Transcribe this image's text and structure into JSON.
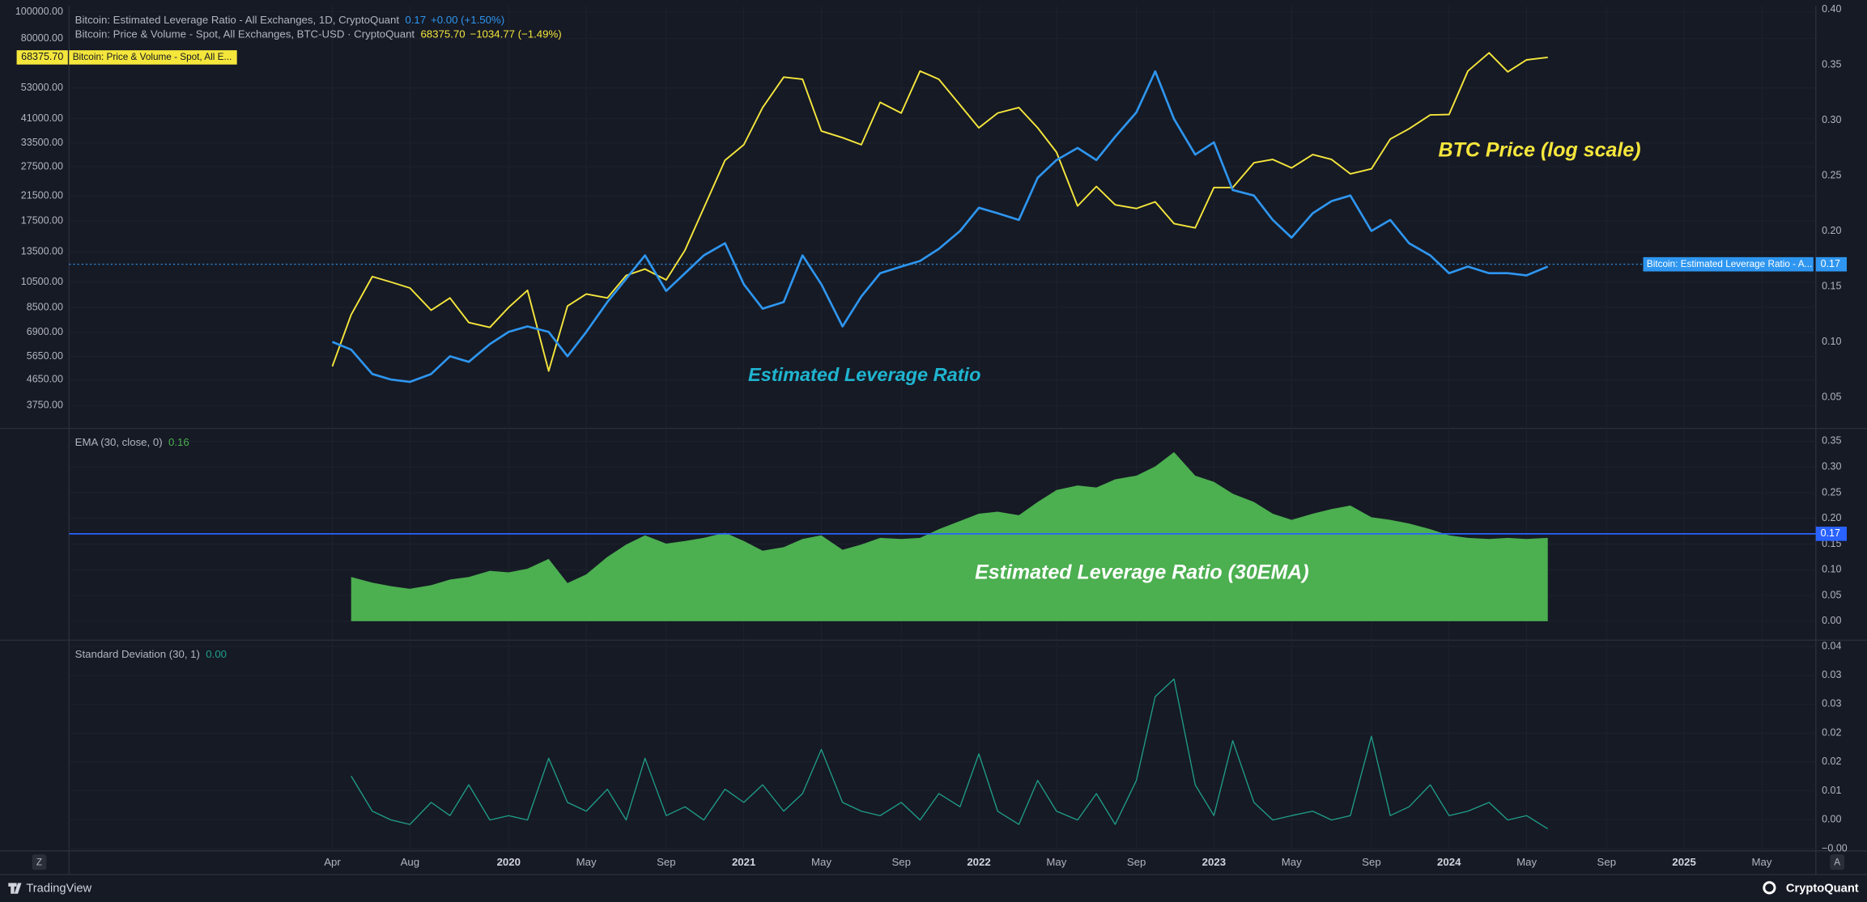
{
  "chart_data": {
    "type": "multi-pane",
    "x": [
      2019.25,
      2019.33,
      2019.42,
      2019.5,
      2019.58,
      2019.67,
      2019.75,
      2019.83,
      2019.92,
      2020,
      2020.08,
      2020.17,
      2020.25,
      2020.33,
      2020.42,
      2020.5,
      2020.58,
      2020.67,
      2020.75,
      2020.83,
      2020.92,
      2021,
      2021.08,
      2021.17,
      2021.25,
      2021.33,
      2021.42,
      2021.5,
      2021.58,
      2021.67,
      2021.75,
      2021.83,
      2021.92,
      2022,
      2022.08,
      2022.17,
      2022.25,
      2022.33,
      2022.42,
      2022.5,
      2022.58,
      2022.67,
      2022.75,
      2022.83,
      2022.92,
      2023,
      2023.08,
      2023.17,
      2023.25,
      2023.33,
      2023.42,
      2023.5,
      2023.58,
      2023.67,
      2023.75,
      2023.83,
      2023.92,
      2024,
      2024.08,
      2024.17,
      2024.25,
      2024.33,
      2024.42
    ],
    "xlim": [
      2018.13,
      2025.56
    ],
    "xticks": [
      {
        "value": 2019.25,
        "label": "Apr"
      },
      {
        "value": 2019.58,
        "label": "Aug"
      },
      2020,
      {
        "value": 2020.33,
        "label": "May"
      },
      {
        "value": 2020.67,
        "label": "Sep"
      },
      2021,
      {
        "value": 2021.33,
        "label": "May"
      },
      {
        "value": 2021.67,
        "label": "Sep"
      },
      2022,
      {
        "value": 2022.33,
        "label": "May"
      },
      {
        "value": 2022.67,
        "label": "Sep"
      },
      2023,
      {
        "value": 2023.33,
        "label": "May"
      },
      {
        "value": 2023.67,
        "label": "Sep"
      },
      2024,
      {
        "value": 2024.33,
        "label": "May"
      },
      {
        "value": 2024.67,
        "label": "Sep"
      },
      2025,
      {
        "value": 2025.33,
        "label": "May"
      }
    ],
    "grid": true,
    "panes": [
      {
        "type": "line",
        "log_y": true,
        "y_axis_side": "left",
        "grid": true,
        "ylim": [
          3100,
          105000
        ],
        "yticks": [
          {
            "value": 100000,
            "label": "100000.00"
          },
          {
            "value": 80000,
            "label": "80000.00"
          },
          {
            "value": 53000,
            "label": "53000.00"
          },
          {
            "value": 41000,
            "label": "41000.00"
          },
          {
            "value": 33500,
            "label": "33500.00"
          },
          {
            "value": 27500,
            "label": "27500.00"
          },
          {
            "value": 21500,
            "label": "21500.00"
          },
          {
            "value": 17500,
            "label": "17500.00"
          },
          {
            "value": 13500,
            "label": "13500.00"
          },
          {
            "value": 10500,
            "label": "10500.00"
          },
          {
            "value": 8500,
            "label": "8500.00"
          },
          {
            "value": 6900,
            "label": "6900.00"
          },
          {
            "value": 5650,
            "label": "5650.00"
          },
          {
            "value": 4650,
            "label": "4650.00"
          },
          {
            "value": 3750,
            "label": "3750.00"
          }
        ],
        "y2lim": [
          0.022,
          0.403
        ],
        "y2ticks": [
          {
            "value": 0.4,
            "label": "0.40"
          },
          0.35,
          {
            "value": 0.3,
            "label": "0.30"
          },
          0.25,
          {
            "value": 0.2,
            "label": "0.20"
          },
          0.15,
          {
            "value": 0.1,
            "label": "0.10"
          },
          0.05
        ],
        "series": [
          {
            "name": "Bitcoin: Estimated Leverage Ratio - All Exchanges, 1D, CryptoQuant",
            "axis": "y2",
            "color": "#2e96f0",
            "legend_value": "0.17",
            "legend_change": "+0.00 (+1.50%)",
            "last_value": 0.17,
            "last_value_label": "0.17",
            "tag": "Bitcoin: Estimated Leverage Ratio - A...",
            "values": [
              0.1,
              0.093,
              0.071,
              0.066,
              0.064,
              0.071,
              0.087,
              0.082,
              0.098,
              0.109,
              0.114,
              0.109,
              0.087,
              0.109,
              0.136,
              0.157,
              0.178,
              0.146,
              0.162,
              0.178,
              0.189,
              0.152,
              0.13,
              0.136,
              0.178,
              0.152,
              0.114,
              0.141,
              0.162,
              0.168,
              0.173,
              0.184,
              0.2,
              0.221,
              0.216,
              0.21,
              0.248,
              0.264,
              0.275,
              0.264,
              0.285,
              0.307,
              0.344,
              0.301,
              0.269,
              0.28,
              0.237,
              0.232,
              0.21,
              0.194,
              0.216,
              0.227,
              0.232,
              0.2,
              0.21,
              0.189,
              0.178,
              0.162,
              0.168,
              0.162,
              0.162,
              0.16,
              0.168
            ]
          },
          {
            "name": "Bitcoin: Price & Volume - Spot, All Exchanges, BTC-USD · CryptoQuant",
            "color": "#f5e63c",
            "legend_value": "68375.70",
            "legend_change": "−1034.77 (−1.49%)",
            "last_value": 68375.7,
            "last_value_label": "68375.70",
            "tag": "Bitcoin: Price & Volume - Spot, All E...",
            "values": [
              5200,
              8000,
              11000,
              10500,
              10000,
              8300,
              9200,
              7500,
              7200,
              8500,
              9800,
              5000,
              8600,
              9500,
              9200,
              11100,
              11700,
              10700,
              13700,
              19500,
              29000,
              33000,
              45000,
              58000,
              57000,
              37000,
              35000,
              33000,
              47000,
              43000,
              61000,
              57000,
              46000,
              38000,
              43000,
              45000,
              38000,
              31000,
              19800,
              23300,
              20000,
              19400,
              20500,
              17100,
              16500,
              23100,
              23100,
              28400,
              29200,
              27200,
              30400,
              29200,
              25900,
              27000,
              34600,
              37700,
              42300,
              42500,
              61000,
              71000,
              60600,
              67000,
              68375.7
            ]
          }
        ],
        "annotations": [
          {
            "text": "BTC Price (log scale)",
            "color": "#f5e63c"
          },
          {
            "text": "Estimated Leverage Ratio",
            "color": "#1fb5d0"
          }
        ]
      },
      {
        "type": "area",
        "y_axis_side": "right",
        "grid": true,
        "ylim": [
          -0.037,
          0.375
        ],
        "yticks": [
          0.35,
          {
            "value": 0.3,
            "label": "0.30"
          },
          0.25,
          {
            "value": 0.2,
            "label": "0.20"
          },
          0.15,
          {
            "value": 0.1,
            "label": "0.10"
          },
          0.05,
          {
            "value": 0,
            "label": "0.00"
          }
        ],
        "series": [
          {
            "name": "EMA (30, close, 0)",
            "color": "#4caf50",
            "legend_value": "0.16",
            "values": [
              null,
              0.086,
              0.075,
              0.068,
              0.063,
              0.07,
              0.081,
              0.086,
              0.098,
              0.095,
              0.102,
              0.121,
              0.074,
              0.091,
              0.125,
              0.149,
              0.167,
              0.151,
              0.156,
              0.162,
              0.172,
              0.156,
              0.137,
              0.144,
              0.16,
              0.167,
              0.139,
              0.149,
              0.162,
              0.16,
              0.162,
              0.179,
              0.195,
              0.209,
              0.213,
              0.206,
              0.232,
              0.255,
              0.264,
              0.26,
              0.276,
              0.283,
              0.301,
              0.329,
              0.283,
              0.271,
              0.248,
              0.232,
              0.209,
              0.197,
              0.209,
              0.218,
              0.225,
              0.202,
              0.197,
              0.19,
              0.179,
              0.167,
              0.162,
              0.16,
              0.162,
              0.16,
              0.162
            ]
          }
        ],
        "hline": {
          "value": 0.17,
          "label": "0.17",
          "color": "#2962ff"
        },
        "annotations": [
          {
            "text": "Estimated Leverage Ratio (30EMA)",
            "color": "#ffffff"
          }
        ]
      },
      {
        "type": "line",
        "y_axis_side": "right",
        "grid": true,
        "ylim": [
          -0.005,
          0.0428
        ],
        "yticks": [
          {
            "value": 0.0414,
            "label": "0.04"
          },
          {
            "value": 0.0348,
            "label": "0.03"
          },
          {
            "value": 0.0283,
            "label": "0.03"
          },
          {
            "value": 0.0217,
            "label": "0.02"
          },
          {
            "value": 0.0152,
            "label": "0.02"
          },
          {
            "value": 0.0086,
            "label": "0.01"
          },
          {
            "value": 0.0021,
            "label": "0.00"
          },
          {
            "value": -0.0045,
            "label": "−0.00"
          }
        ],
        "series": [
          {
            "name": "Standard Deviation (30, 1)",
            "color": "#1f9e89",
            "legend_value": "0.00",
            "values": [
              null,
              0.012,
              0.004,
              0.002,
              0.001,
              0.006,
              0.003,
              0.01,
              0.002,
              0.003,
              0.002,
              0.016,
              0.006,
              0.004,
              0.009,
              0.002,
              0.016,
              0.003,
              0.005,
              0.002,
              0.009,
              0.006,
              0.01,
              0.004,
              0.008,
              0.018,
              0.006,
              0.004,
              0.003,
              0.006,
              0.002,
              0.008,
              0.005,
              0.017,
              0.004,
              0.001,
              0.011,
              0.004,
              0.002,
              0.008,
              0.001,
              0.011,
              0.03,
              0.034,
              0.01,
              0.003,
              0.02,
              0.006,
              0.002,
              0.003,
              0.004,
              0.002,
              0.003,
              0.021,
              0.003,
              0.005,
              0.01,
              0.003,
              0.004,
              0.006,
              0.002,
              0.003,
              0.0
            ]
          }
        ]
      }
    ]
  },
  "buttons": {
    "left": "Z",
    "right": "A"
  },
  "footer": {
    "left": "TradingView",
    "right": "CryptoQuant"
  }
}
